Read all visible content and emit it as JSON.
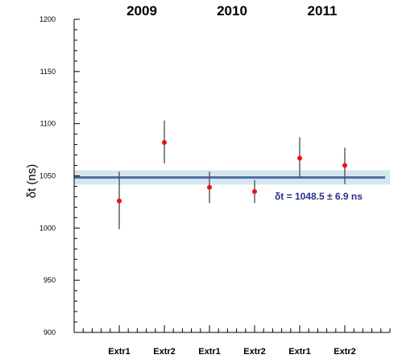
{
  "chart_data": {
    "type": "scatter",
    "ylabel": "δt (ns)",
    "ylim": [
      900,
      1200
    ],
    "yticks": [
      900,
      950,
      1000,
      1050,
      1100,
      1150,
      1200
    ],
    "categories": [
      "Extr1",
      "Extr2",
      "Extr1",
      "Extr2",
      "Extr1",
      "Extr2"
    ],
    "years": [
      "2009",
      "2010",
      "2011"
    ],
    "points": [
      {
        "y": 1026,
        "ylow": 999,
        "yhigh": 1054
      },
      {
        "y": 1082,
        "ylow": 1062,
        "yhigh": 1103
      },
      {
        "y": 1039,
        "ylow": 1024,
        "yhigh": 1054
      },
      {
        "y": 1035,
        "ylow": 1024,
        "yhigh": 1046
      },
      {
        "y": 1067,
        "ylow": 1048,
        "yhigh": 1087
      },
      {
        "y": 1060,
        "ylow": 1042,
        "yhigh": 1077
      }
    ],
    "fit": {
      "value": 1048.5,
      "error": 6.9
    },
    "annotation": "δt = 1048.5 ± 6.9 ns",
    "grid": false,
    "colors": {
      "point": "#ee1111",
      "errorbar": "#555555",
      "fit_line": "#4f6fa8",
      "band": "#d4e6f1"
    }
  }
}
